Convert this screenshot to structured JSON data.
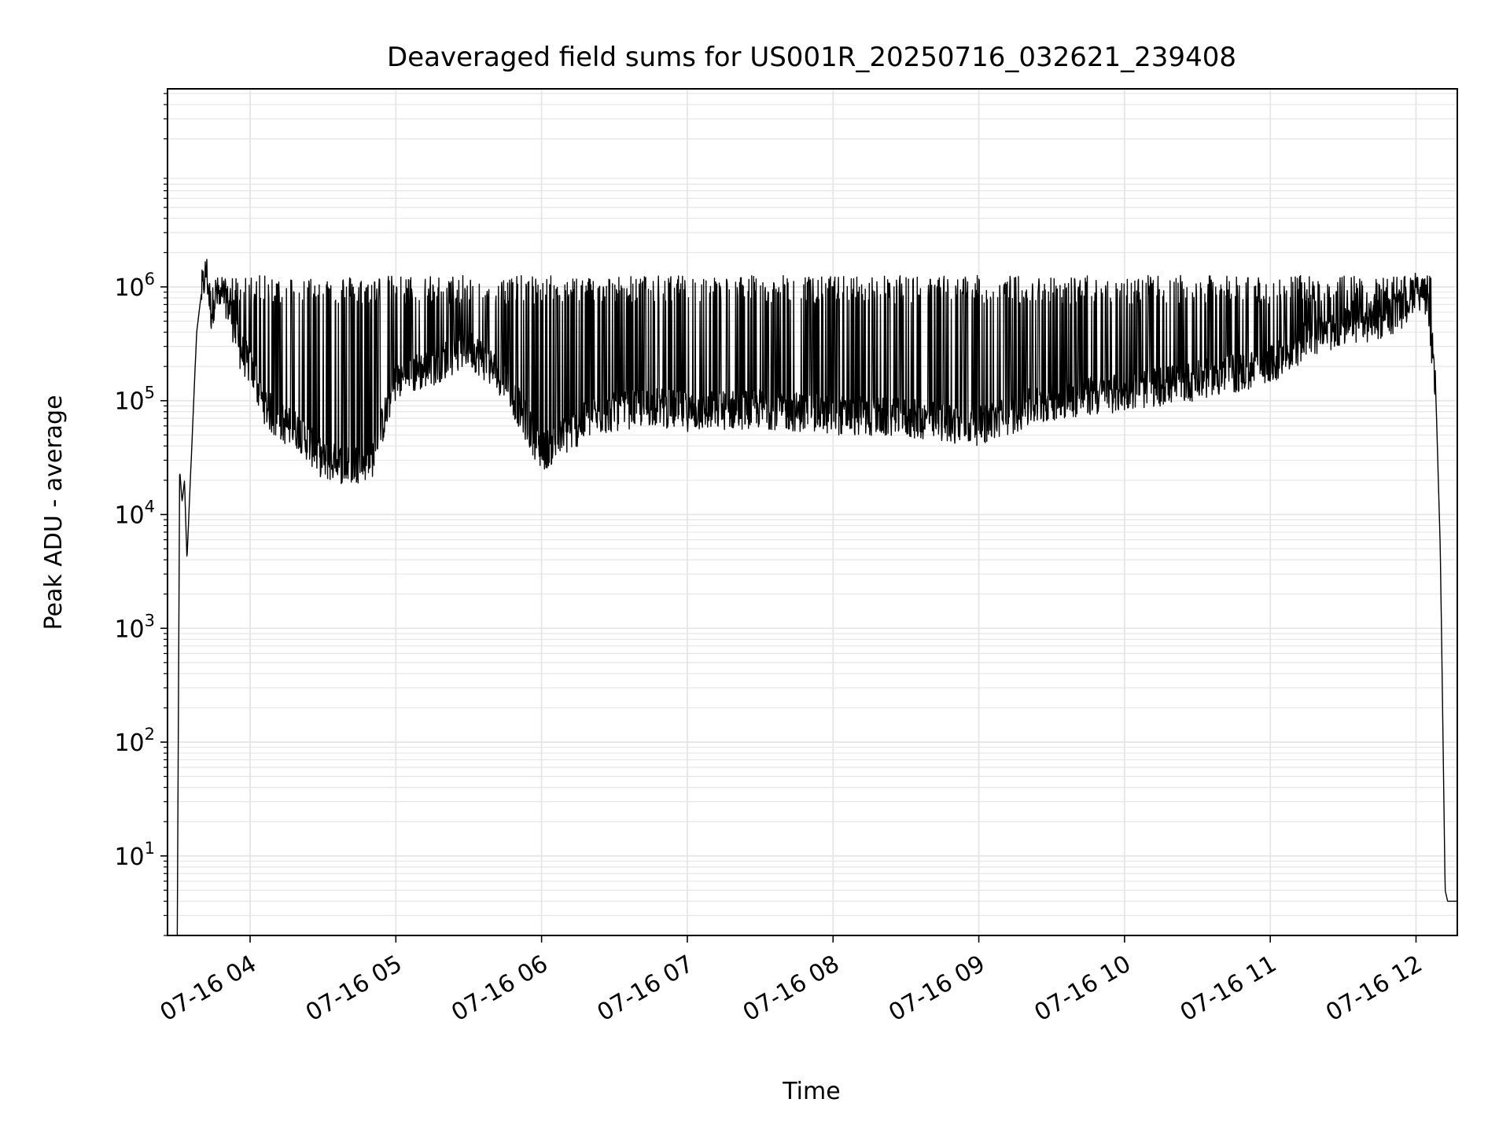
{
  "chart_data": {
    "type": "line",
    "title": "Deaveraged field sums for US001R_20250716_032621_239408",
    "xlabel": "Time",
    "ylabel": "Peak ADU - average",
    "yscale": "log",
    "grid": true,
    "line_color": "#000000",
    "grid_color": "#e6e6e6",
    "xlim": [
      "2025-07-16 03:26",
      "2025-07-16 12:17"
    ],
    "ylim": [
      2,
      55000000
    ],
    "x_ticks": [
      {
        "value": "2025-07-16 04:00",
        "label": "07-16 04"
      },
      {
        "value": "2025-07-16 05:00",
        "label": "07-16 05"
      },
      {
        "value": "2025-07-16 06:00",
        "label": "07-16 06"
      },
      {
        "value": "2025-07-16 07:00",
        "label": "07-16 07"
      },
      {
        "value": "2025-07-16 08:00",
        "label": "07-16 08"
      },
      {
        "value": "2025-07-16 09:00",
        "label": "07-16 09"
      },
      {
        "value": "2025-07-16 10:00",
        "label": "07-16 10"
      },
      {
        "value": "2025-07-16 11:00",
        "label": "07-16 11"
      },
      {
        "value": "2025-07-16 12:00",
        "label": "07-16 12"
      }
    ],
    "y_ticks": [
      {
        "value": 10,
        "base": "10",
        "exp": "1"
      },
      {
        "value": 100,
        "base": "10",
        "exp": "2"
      },
      {
        "value": 1000,
        "base": "10",
        "exp": "3"
      },
      {
        "value": 10000,
        "base": "10",
        "exp": "4"
      },
      {
        "value": 100000,
        "base": "10",
        "exp": "5"
      },
      {
        "value": 1000000,
        "base": "10",
        "exp": "6"
      }
    ],
    "series": [
      {
        "x": [
          "2025-07-16 03:30",
          "2025-07-16 03:31",
          "2025-07-16 03:32",
          "2025-07-16 03:33",
          "2025-07-16 03:34",
          "2025-07-16 03:36",
          "2025-07-16 03:38",
          "2025-07-16 03:40",
          "2025-07-16 03:42",
          "2025-07-16 03:44",
          "2025-07-16 03:46",
          "2025-07-16 03:48",
          "2025-07-16 03:50",
          "2025-07-16 03:52",
          "2025-07-16 03:55",
          "2025-07-16 04:00",
          "2025-07-16 04:05",
          "2025-07-16 04:10",
          "2025-07-16 04:15",
          "2025-07-16 04:20",
          "2025-07-16 04:25",
          "2025-07-16 04:30",
          "2025-07-16 04:40",
          "2025-07-16 04:50",
          "2025-07-16 05:00",
          "2025-07-16 05:15",
          "2025-07-16 05:30",
          "2025-07-16 05:45",
          "2025-07-16 06:00",
          "2025-07-16 06:10",
          "2025-07-16 06:20",
          "2025-07-16 06:30",
          "2025-07-16 06:45",
          "2025-07-16 07:00",
          "2025-07-16 07:30",
          "2025-07-16 08:00",
          "2025-07-16 08:30",
          "2025-07-16 09:00",
          "2025-07-16 09:30",
          "2025-07-16 10:00",
          "2025-07-16 10:30",
          "2025-07-16 11:00",
          "2025-07-16 11:15",
          "2025-07-16 11:30",
          "2025-07-16 11:45",
          "2025-07-16 11:55",
          "2025-07-16 12:00",
          "2025-07-16 12:02",
          "2025-07-16 12:05",
          "2025-07-16 12:08",
          "2025-07-16 12:10",
          "2025-07-16 12:12",
          "2025-07-16 12:13",
          "2025-07-16 12:17"
        ],
        "y": [
          2,
          25000,
          13000,
          20000,
          4000,
          40000,
          400000,
          900000,
          1400000,
          600000,
          900000,
          700000,
          800000,
          600000,
          300000,
          200000,
          100000,
          70000,
          60000,
          55000,
          40000,
          30000,
          27000,
          30000,
          150000,
          200000,
          300000,
          150000,
          35000,
          50000,
          70000,
          80000,
          90000,
          80000,
          85000,
          75000,
          70000,
          60000,
          100000,
          120000,
          150000,
          200000,
          350000,
          450000,
          500000,
          650000,
          1000000,
          900000,
          600000,
          150000,
          5000,
          5,
          4,
          4
        ]
      }
    ]
  }
}
